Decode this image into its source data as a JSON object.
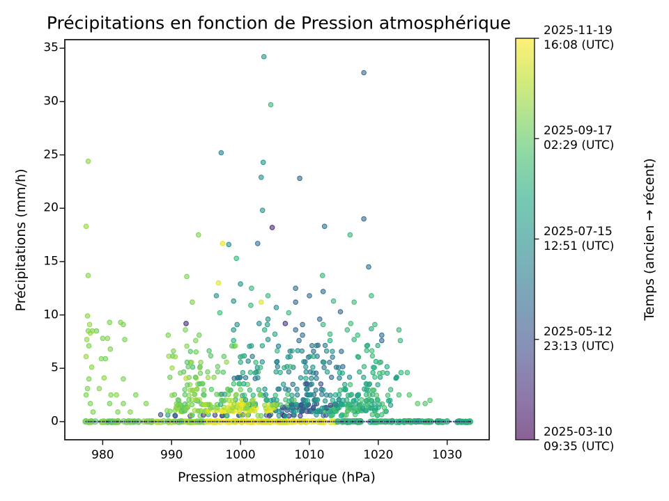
{
  "title": "Précipitations en fonction de Pression atmosphérique",
  "xlabel": "Pression atmosphérique (hPa)",
  "ylabel": "Précipitations (mm/h)",
  "colorbar": {
    "label": "Temps (ancien → récent)",
    "colormap": "viridis",
    "ticks": [
      {
        "pos": 0.0,
        "line1": "2025-03-10",
        "line2": "09:35 (UTC)"
      },
      {
        "pos": 0.25,
        "line1": "2025-05-12",
        "line2": "23:13 (UTC)"
      },
      {
        "pos": 0.5,
        "line1": "2025-07-15",
        "line2": "12:51 (UTC)"
      },
      {
        "pos": 0.75,
        "line1": "2025-09-17",
        "line2": "02:29 (UTC)"
      },
      {
        "pos": 1.0,
        "line1": "2025-11-19",
        "line2": "16:08 (UTC)"
      }
    ]
  },
  "chart_data": {
    "type": "scatter",
    "title": "Précipitations en fonction de Pression atmosphérique",
    "xlabel": "Pression atmosphérique (hPa)",
    "ylabel": "Précipitations (mm/h)",
    "xlim": [
      974.5,
      1036.1
    ],
    "ylim": [
      -1.7,
      35.8
    ],
    "xticks": [
      980,
      990,
      1000,
      1010,
      1020,
      1030
    ],
    "yticks": [
      0,
      5,
      10,
      15,
      20,
      25,
      30,
      35
    ],
    "grid": false,
    "color_encodes": "time (viridis, ancien=violet -> récent=jaune), value t in [0,1]",
    "seed": 1234,
    "points": [
      [
        1003.4,
        34.2,
        0.52
      ],
      [
        1017.9,
        32.7,
        0.33
      ],
      [
        1004.4,
        29.7,
        0.66
      ],
      [
        997.2,
        25.2,
        0.42
      ],
      [
        977.9,
        24.4,
        0.82
      ],
      [
        1003.3,
        24.3,
        0.5
      ],
      [
        1003.0,
        22.9,
        0.5
      ],
      [
        1008.6,
        22.8,
        0.33
      ],
      [
        1003.2,
        19.8,
        0.52
      ],
      [
        1017.9,
        19.0,
        0.33
      ],
      [
        977.6,
        18.3,
        0.84
      ],
      [
        1004.6,
        18.2,
        0.12
      ],
      [
        1012.2,
        18.3,
        0.35
      ],
      [
        993.9,
        17.5,
        0.8
      ],
      [
        1015.9,
        17.5,
        0.66
      ],
      [
        997.4,
        16.7,
        0.96
      ],
      [
        998.3,
        16.6,
        0.5
      ],
      [
        1002.5,
        16.7,
        0.35
      ],
      [
        999.4,
        15.3,
        0.66
      ],
      [
        1018.6,
        14.5,
        0.35
      ],
      [
        977.9,
        13.7,
        0.82
      ],
      [
        992.2,
        13.6,
        0.8
      ],
      [
        1011.9,
        13.7,
        0.66
      ],
      [
        996.8,
        13.0,
        0.95
      ],
      [
        1000.0,
        12.9,
        0.5
      ],
      [
        1001.6,
        12.5,
        0.66
      ],
      [
        1008.0,
        12.5,
        0.35
      ],
      [
        1012.0,
        12.2,
        0.33
      ],
      [
        993.0,
        11.2,
        0.8
      ],
      [
        999.0,
        11.3,
        0.5
      ],
      [
        1003.0,
        11.2,
        0.95
      ],
      [
        1008.0,
        11.2,
        0.33
      ],
      [
        1013.5,
        11.3,
        0.66
      ],
      [
        1016.5,
        11.2,
        0.68
      ],
      [
        996.5,
        11.8,
        0.5
      ],
      [
        1004.0,
        11.8,
        0.66
      ],
      [
        1010.0,
        11.8,
        0.35
      ],
      [
        1019.0,
        11.8,
        0.66
      ],
      [
        1001.5,
        10.9,
        0.66
      ],
      [
        1005.2,
        10.7,
        0.5
      ],
      [
        997.0,
        10.2,
        0.68
      ],
      [
        1007.0,
        10.2,
        0.66
      ],
      [
        1014.5,
        10.3,
        0.33
      ],
      [
        977.8,
        9.9,
        0.82
      ],
      [
        978.1,
        9.1,
        0.84
      ],
      [
        983.0,
        9.1,
        0.8
      ],
      [
        992.1,
        9.2,
        0.12
      ],
      [
        999.5,
        9.1,
        0.5
      ],
      [
        1002.7,
        9.2,
        0.45
      ],
      [
        1003.9,
        9.1,
        0.55
      ],
      [
        1006.5,
        9.2,
        0.14
      ],
      [
        1009.0,
        9.1,
        0.35
      ],
      [
        1012.0,
        9.1,
        0.66
      ],
      [
        1016.0,
        9.2,
        0.68
      ],
      [
        1019.5,
        9.1,
        0.66
      ],
      [
        1004.0,
        9.6,
        0.5
      ],
      [
        1011.5,
        9.6,
        0.33
      ],
      [
        981.0,
        9.3,
        0.8
      ],
      [
        982.6,
        9.3,
        0.8
      ],
      [
        992.0,
        8.6,
        0.8
      ],
      [
        999.0,
        8.6,
        0.52
      ],
      [
        1003.5,
        8.6,
        0.62
      ],
      [
        1008.0,
        8.6,
        0.33
      ],
      [
        1015.5,
        8.6,
        0.66
      ],
      [
        1019.0,
        8.7,
        0.62
      ],
      [
        1023.0,
        8.6,
        0.66
      ],
      [
        977.9,
        8.5,
        0.8
      ],
      [
        978.5,
        8.5,
        0.82
      ],
      [
        979.1,
        8.5,
        0.78
      ],
      [
        978.2,
        8.3,
        0.84
      ],
      [
        989.5,
        8.1,
        0.8
      ],
      [
        994.0,
        8.1,
        0.78
      ],
      [
        1005.0,
        8.2,
        0.6
      ],
      [
        1009.0,
        8.1,
        0.35
      ],
      [
        1013.0,
        8.2,
        0.66
      ],
      [
        1017.0,
        8.1,
        0.68
      ],
      [
        1020.5,
        8.1,
        0.35
      ],
      [
        977.7,
        7.7,
        0.84
      ],
      [
        980.0,
        7.8,
        0.8
      ],
      [
        980.7,
        7.8,
        0.82
      ],
      [
        983.2,
        7.7,
        0.8
      ],
      [
        993.5,
        7.6,
        0.8
      ],
      [
        999.0,
        7.6,
        0.62
      ],
      [
        1004.0,
        7.7,
        0.5
      ],
      [
        1008.5,
        7.6,
        0.35
      ],
      [
        1013.0,
        7.6,
        0.62
      ],
      [
        1016.5,
        7.7,
        0.66
      ],
      [
        1020.5,
        7.6,
        0.33
      ],
      [
        1023.2,
        7.6,
        0.66
      ],
      [
        978.0,
        7.1,
        0.8
      ],
      [
        981.1,
        6.8,
        0.8
      ],
      [
        977.6,
        6.1,
        0.84
      ],
      [
        979.8,
        5.9,
        0.8
      ],
      [
        980.4,
        5.9,
        0.78
      ],
      [
        978.4,
        5.1,
        0.82
      ],
      [
        978.0,
        4.0,
        0.8
      ],
      [
        980.2,
        4.1,
        0.82
      ],
      [
        983.0,
        4.0,
        0.8
      ],
      [
        977.8,
        3.1,
        0.8
      ],
      [
        979.5,
        3.1,
        0.82
      ],
      [
        977.6,
        2.5,
        0.8
      ],
      [
        981.2,
        2.5,
        0.8
      ],
      [
        982.0,
        2.5,
        0.82
      ],
      [
        984.8,
        2.5,
        0.8
      ],
      [
        978.2,
        1.7,
        0.8
      ],
      [
        981.0,
        1.7,
        0.78
      ],
      [
        983.0,
        1.7,
        0.8
      ],
      [
        986.3,
        1.7,
        0.8
      ],
      [
        978.6,
        0.9,
        0.8
      ],
      [
        982.2,
        0.9,
        0.8
      ],
      [
        984.0,
        0.9,
        0.82
      ],
      [
        1027.5,
        2.0,
        0.72
      ],
      [
        1025.7,
        1.7,
        0.74
      ],
      [
        1026.8,
        1.7,
        0.72
      ],
      [
        1023.3,
        4.6,
        0.66
      ],
      [
        1024.2,
        4.6,
        0.68
      ],
      [
        1023.0,
        2.5,
        0.7
      ],
      [
        1024.5,
        2.5,
        0.72
      ],
      [
        1021.8,
        3.0,
        0.66
      ]
    ],
    "dense_rows": [
      {
        "y": 0.6,
        "segments": [
          [
            988,
            996,
            10,
            0.1,
            0.9
          ],
          [
            996,
            1004,
            14,
            0.1,
            1.0
          ],
          [
            1004,
            1013,
            14,
            0.1,
            0.6
          ],
          [
            1013,
            1021,
            12,
            0.55,
            0.75
          ]
        ]
      },
      {
        "y": 1.0,
        "segments": [
          [
            989,
            995,
            14,
            0.72,
            0.88
          ],
          [
            995,
            1005,
            30,
            0.85,
            1.0
          ],
          [
            1005,
            1012,
            22,
            0.2,
            0.6
          ],
          [
            1012,
            1022,
            26,
            0.55,
            0.75
          ]
        ]
      },
      {
        "y": 1.3,
        "segments": [
          [
            990,
            996,
            12,
            0.7,
            0.85
          ],
          [
            996,
            1006,
            26,
            0.8,
            1.0
          ],
          [
            1006,
            1013,
            18,
            0.15,
            0.55
          ],
          [
            1013,
            1022,
            22,
            0.55,
            0.75
          ]
        ]
      },
      {
        "y": 1.6,
        "segments": [
          [
            990,
            997,
            16,
            0.72,
            0.9
          ],
          [
            997,
            1007,
            30,
            0.6,
            1.0
          ],
          [
            1007,
            1014,
            20,
            0.1,
            0.6
          ],
          [
            1014,
            1022,
            20,
            0.55,
            0.72
          ]
        ]
      },
      {
        "y": 2.0,
        "segments": [
          [
            990,
            998,
            12,
            0.7,
            0.88
          ],
          [
            998,
            1008,
            18,
            0.5,
            0.95
          ],
          [
            1008,
            1015,
            14,
            0.3,
            0.6
          ],
          [
            1015,
            1022,
            14,
            0.58,
            0.72
          ]
        ]
      },
      {
        "y": 2.5,
        "segments": [
          [
            989,
            997,
            10,
            0.7,
            0.85
          ],
          [
            997,
            1007,
            14,
            0.45,
            0.9
          ],
          [
            1007,
            1014,
            12,
            0.3,
            0.65
          ],
          [
            1014,
            1022,
            12,
            0.55,
            0.75
          ]
        ]
      },
      {
        "y": 3.0,
        "segments": [
          [
            991,
            997,
            8,
            0.72,
            0.85
          ],
          [
            998,
            1004,
            8,
            0.5,
            0.8
          ],
          [
            1005,
            1012,
            10,
            0.25,
            0.55
          ],
          [
            1013,
            1020,
            9,
            0.55,
            0.72
          ]
        ]
      },
      {
        "y": 3.5,
        "segments": [
          [
            991,
            996,
            6,
            0.7,
            0.85
          ],
          [
            999,
            1003,
            5,
            0.5,
            0.75
          ],
          [
            1004,
            1012,
            8,
            0.2,
            0.55
          ],
          [
            1014,
            1020,
            7,
            0.55,
            0.7
          ]
        ]
      },
      {
        "y": 4.1,
        "segments": [
          [
            989,
            997,
            7,
            0.7,
            0.9
          ],
          [
            999,
            1007,
            8,
            0.35,
            0.7
          ],
          [
            1008,
            1016,
            7,
            0.3,
            0.6
          ],
          [
            1017,
            1023,
            6,
            0.55,
            0.72
          ]
        ]
      },
      {
        "y": 4.6,
        "segments": [
          [
            990,
            998,
            6,
            0.7,
            0.85
          ],
          [
            999,
            1008,
            8,
            0.4,
            0.7
          ],
          [
            1009,
            1016,
            7,
            0.3,
            0.62
          ],
          [
            1017,
            1022,
            5,
            0.55,
            0.7
          ]
        ]
      },
      {
        "y": 5.1,
        "segments": [
          [
            990,
            998,
            6,
            0.68,
            0.85
          ],
          [
            999,
            1008,
            7,
            0.4,
            0.7
          ],
          [
            1009,
            1016,
            6,
            0.3,
            0.6
          ],
          [
            1017,
            1022,
            4,
            0.55,
            0.7
          ]
        ]
      },
      {
        "y": 5.6,
        "segments": [
          [
            991,
            999,
            5,
            0.7,
            0.85
          ],
          [
            1000,
            1008,
            6,
            0.4,
            0.68
          ],
          [
            1009,
            1016,
            5,
            0.3,
            0.6
          ],
          [
            1017,
            1021,
            3,
            0.55,
            0.7
          ]
        ]
      },
      {
        "y": 6.1,
        "segments": [
          [
            989,
            998,
            5,
            0.7,
            0.85
          ],
          [
            999,
            1008,
            6,
            0.4,
            0.68
          ],
          [
            1009,
            1016,
            5,
            0.28,
            0.6
          ],
          [
            1017,
            1020,
            3,
            0.55,
            0.7
          ]
        ]
      },
      {
        "y": 6.6,
        "segments": [
          [
            990,
            999,
            4,
            0.7,
            0.82
          ],
          [
            1000,
            1009,
            5,
            0.4,
            0.66
          ],
          [
            1010,
            1017,
            4,
            0.3,
            0.6
          ],
          [
            1018,
            1021,
            2,
            0.6,
            0.7
          ]
        ]
      },
      {
        "y": 7.1,
        "segments": [
          [
            992,
            1000,
            4,
            0.7,
            0.82
          ],
          [
            1001,
            1009,
            4,
            0.4,
            0.66
          ],
          [
            1010,
            1017,
            4,
            0.3,
            0.6
          ],
          [
            1018,
            1023,
            3,
            0.6,
            0.7
          ]
        ]
      }
    ],
    "zero_band": {
      "y": 0,
      "segments": [
        [
          977.5,
          987.5,
          42,
          0.74,
          0.84
        ],
        [
          987.5,
          995,
          34,
          0.76,
          0.9
        ],
        [
          995,
          1014,
          100,
          0.92,
          1.0
        ],
        [
          1014,
          1033.5,
          100,
          0.6,
          0.7
        ]
      ]
    },
    "zero_speckle": {
      "y": 0,
      "x0": 977.5,
      "x1": 1033.5,
      "n": 190,
      "t0": 0.0,
      "t1": 0.3
    }
  },
  "style_colors": {
    "viridis_min": "#440154",
    "viridis_mid": "#21918c",
    "viridis_max": "#fde725",
    "axis": "#1a1a1a",
    "text": "#000000",
    "background": "#ffffff"
  }
}
